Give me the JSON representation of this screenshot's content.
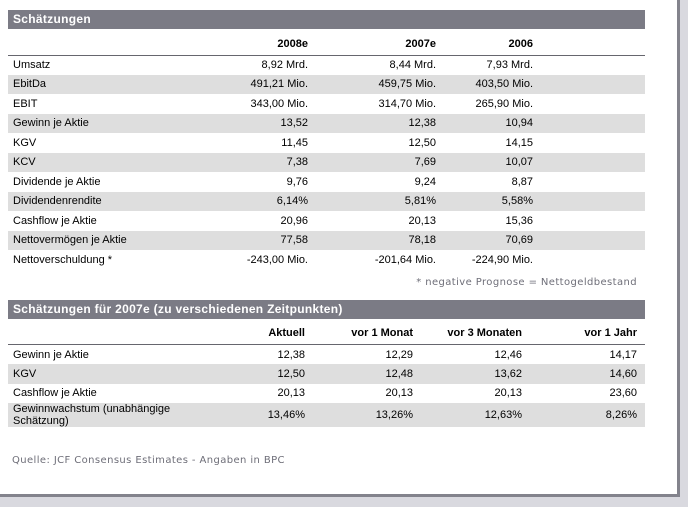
{
  "colors": {
    "section_bar_bg": "#7b7b85",
    "section_bar_text": "#ffffff",
    "row_alt_bg": "#dedede",
    "frame_border": "#83838c",
    "outer_bg": "#d9d9df",
    "muted_text": "#6e6e78",
    "text": "#000000"
  },
  "table1": {
    "title": "Schätzungen",
    "columns": [
      "2008e",
      "2007e",
      "2006"
    ],
    "rows": [
      {
        "label": "Umsatz",
        "values": [
          "8,92 Mrd.",
          "8,44 Mrd.",
          "7,93 Mrd."
        ]
      },
      {
        "label": "EbitDa",
        "values": [
          "491,21 Mio.",
          "459,75 Mio.",
          "403,50 Mio."
        ]
      },
      {
        "label": "EBIT",
        "values": [
          "343,00 Mio.",
          "314,70 Mio.",
          "265,90 Mio."
        ]
      },
      {
        "label": "Gewinn je Aktie",
        "values": [
          "13,52",
          "12,38",
          "10,94"
        ]
      },
      {
        "label": "KGV",
        "values": [
          "11,45",
          "12,50",
          "14,15"
        ]
      },
      {
        "label": "KCV",
        "values": [
          "7,38",
          "7,69",
          "10,07"
        ]
      },
      {
        "label": "Dividende je Aktie",
        "values": [
          "9,76",
          "9,24",
          "8,87"
        ]
      },
      {
        "label": "Dividendenrendite",
        "values": [
          "6,14%",
          "5,81%",
          "5,58%"
        ]
      },
      {
        "label": "Cashflow je Aktie",
        "values": [
          "20,96",
          "20,13",
          "15,36"
        ]
      },
      {
        "label": "Nettovermögen je Aktie",
        "values": [
          "77,58",
          "78,18",
          "70,69"
        ]
      },
      {
        "label": "Nettoverschuldung *",
        "values": [
          "-243,00 Mio.",
          "-201,64 Mio.",
          "-224,90 Mio."
        ]
      }
    ],
    "footnote": "* negative Prognose = Nettogeldbestand"
  },
  "table2": {
    "title": "Schätzungen für 2007e (zu verschiedenen Zeitpunkten)",
    "columns": [
      "Aktuell",
      "vor 1 Monat",
      "vor 3 Monaten",
      "vor 1 Jahr"
    ],
    "rows": [
      {
        "label": "Gewinn je Aktie",
        "values": [
          "12,38",
          "12,29",
          "12,46",
          "14,17"
        ]
      },
      {
        "label": "KGV",
        "values": [
          "12,50",
          "12,48",
          "13,62",
          "14,60"
        ]
      },
      {
        "label": "Cashflow je Aktie",
        "values": [
          "20,13",
          "20,13",
          "20,13",
          "23,60"
        ]
      },
      {
        "label": "Gewinnwachstum (unabhängige Schätzung)",
        "values": [
          "13,46%",
          "13,26%",
          "12,63%",
          "8,26%"
        ]
      }
    ]
  },
  "source": "Quelle: JCF Consensus Estimates - Angaben in BPC"
}
